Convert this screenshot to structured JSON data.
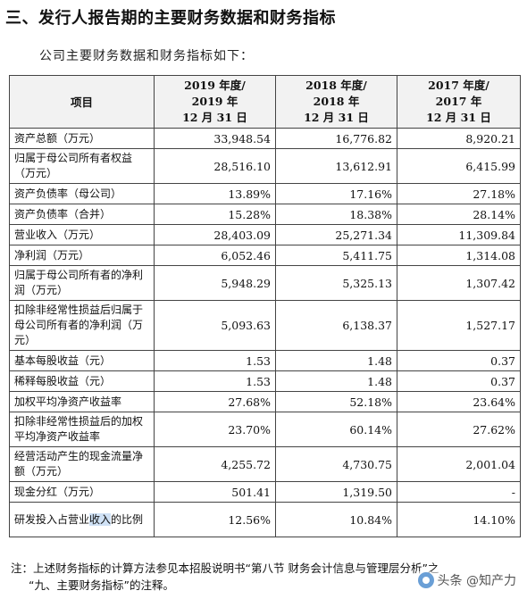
{
  "heading": "三、发行人报告期的主要财务数据和财务指标",
  "intro": "公司主要财务数据和财务指标如下：",
  "table": {
    "col_item": "项目",
    "col_2019": [
      "2019 年度/",
      "2019 年",
      "12 月 31 日"
    ],
    "col_2018": [
      "2018 年度/",
      "2018 年",
      "12 月 31 日"
    ],
    "col_2017": [
      "2017 年度/",
      "2017 年",
      "12 月 31 日"
    ],
    "rows": [
      {
        "label": "资产总额（万元）",
        "v2019": "33,948.54",
        "v2018": "16,776.82",
        "v2017": "8,920.21"
      },
      {
        "label": "归属于母公司所有者权益（万元）",
        "v2019": "28,516.10",
        "v2018": "13,612.91",
        "v2017": "6,415.99"
      },
      {
        "label": "资产负债率（母公司）",
        "v2019": "13.89%",
        "v2018": "17.16%",
        "v2017": "27.18%"
      },
      {
        "label": "资产负债率（合并）",
        "v2019": "15.28%",
        "v2018": "18.38%",
        "v2017": "28.14%"
      },
      {
        "label": "营业收入（万元）",
        "v2019": "28,403.09",
        "v2018": "25,271.34",
        "v2017": "11,309.84"
      },
      {
        "label": "净利润（万元）",
        "v2019": "6,052.46",
        "v2018": "5,411.75",
        "v2017": "1,314.08"
      },
      {
        "label": "归属于母公司所有者的净利润（万元）",
        "v2019": "5,948.29",
        "v2018": "5,325.13",
        "v2017": "1,307.42"
      },
      {
        "label": "扣除非经常性损益后归属于母公司所有者的净利润（万元）",
        "v2019": "5,093.63",
        "v2018": "6,138.37",
        "v2017": "1,527.17"
      },
      {
        "label": "基本每股收益（元）",
        "v2019": "1.53",
        "v2018": "1.48",
        "v2017": "0.37"
      },
      {
        "label": "稀释每股收益（元）",
        "v2019": "1.53",
        "v2018": "1.48",
        "v2017": "0.37"
      },
      {
        "label": "加权平均净资产收益率",
        "v2019": "27.68%",
        "v2018": "52.18%",
        "v2017": "23.64%"
      },
      {
        "label": "扣除非经常性损益后的加权平均净资产收益率",
        "v2019": "23.70%",
        "v2018": "60.14%",
        "v2017": "27.62%"
      },
      {
        "label": "经营活动产生的现金流量净额（万元）",
        "v2019": "4,255.72",
        "v2018": "4,730.75",
        "v2017": "2,001.04"
      },
      {
        "label": "现金分红（万元）",
        "v2019": "501.41",
        "v2018": "1,319.50",
        "v2017": "-"
      },
      {
        "label_pre": "研发投入占营业",
        "label_hl": "收入",
        "label_post": "的比例",
        "v2019": "12.56%",
        "v2018": "10.84%",
        "v2017": "14.10%"
      }
    ]
  },
  "note": {
    "line1": "注：上述财务指标的计算方法参见本招股说明书“第八节 财务会计信息与管理层分析”之",
    "line2": "“九、主要财务指标”的注释。"
  },
  "watermark": "头条 @知产力"
}
